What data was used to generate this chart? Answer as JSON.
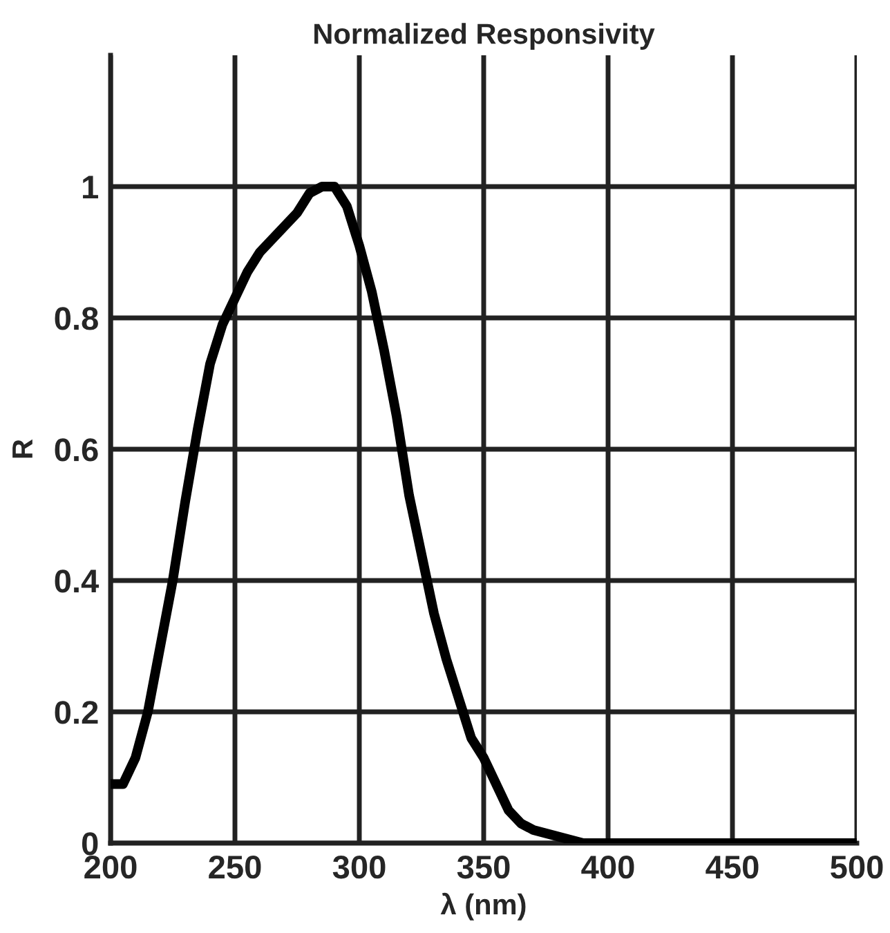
{
  "chart_data": {
    "type": "line",
    "title": "Normalized Responsivity",
    "xlabel": "λ (nm)",
    "ylabel": "R",
    "x": [
      200,
      205,
      210,
      215,
      220,
      225,
      230,
      235,
      240,
      245,
      250,
      255,
      260,
      265,
      270,
      275,
      280,
      285,
      290,
      295,
      300,
      305,
      310,
      315,
      320,
      325,
      330,
      335,
      340,
      345,
      350,
      355,
      360,
      365,
      370,
      380,
      390,
      400,
      500
    ],
    "series": [
      {
        "color": "#000000",
        "values": [
          0.09,
          0.09,
          0.13,
          0.2,
          0.3,
          0.4,
          0.52,
          0.63,
          0.73,
          0.79,
          0.83,
          0.87,
          0.9,
          0.92,
          0.94,
          0.96,
          0.99,
          1.0,
          1.0,
          0.97,
          0.91,
          0.84,
          0.75,
          0.65,
          0.53,
          0.44,
          0.35,
          0.28,
          0.22,
          0.16,
          0.13,
          0.09,
          0.05,
          0.03,
          0.02,
          0.01,
          0.0,
          0.0,
          0.0
        ]
      }
    ],
    "xlim": [
      200,
      500
    ],
    "ylim": [
      0,
      1.2
    ],
    "xticks": [
      200,
      250,
      300,
      350,
      400,
      450,
      500
    ],
    "yticks": [
      0,
      0.2,
      0.4,
      0.6,
      0.8,
      1
    ],
    "grid": true,
    "marker": "none",
    "line_style": "solid"
  }
}
